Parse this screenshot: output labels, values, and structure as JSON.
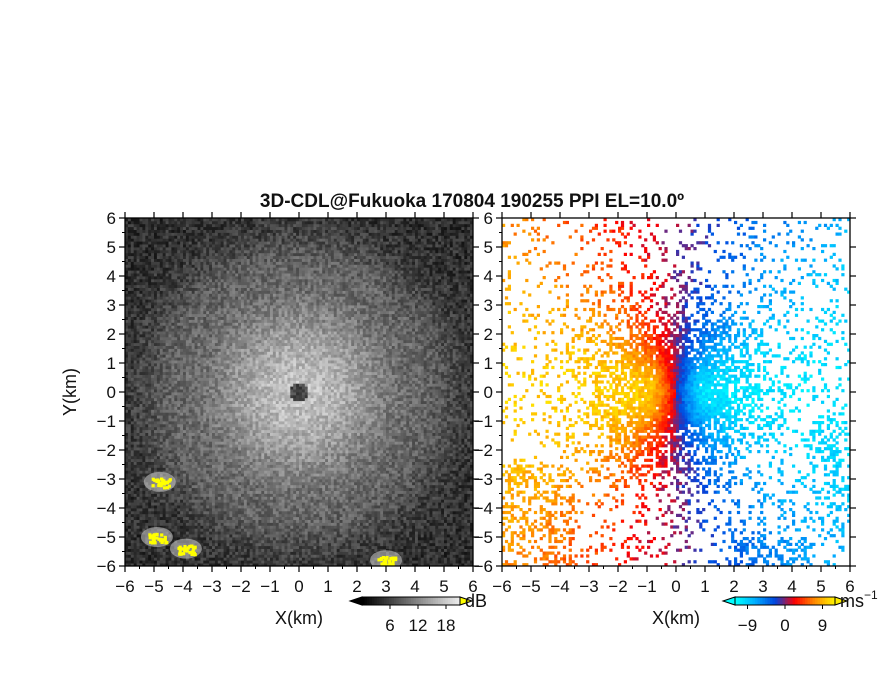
{
  "title": "3D-CDL@Fukuoka 170804 190255 PPI EL=10.0º",
  "chart_data": [
    {
      "type": "heatmap",
      "name": "left-panel",
      "xlabel": "X(km)",
      "ylabel": "Y(km)",
      "xlim": [
        -6,
        6
      ],
      "ylim": [
        -6,
        6
      ],
      "xticks": [
        -6,
        -5,
        -4,
        -3,
        -2,
        -1,
        0,
        1,
        2,
        3,
        4,
        5,
        6
      ],
      "yticks": [
        -6,
        -5,
        -4,
        -3,
        -2,
        -1,
        0,
        1,
        2,
        3,
        4,
        5,
        6
      ],
      "xtick_labels": [
        "−6",
        "−5",
        "−4",
        "−3",
        "−2",
        "−1",
        "0",
        "1",
        "2",
        "3",
        "4",
        "5",
        "6"
      ],
      "ytick_labels": [
        "−6",
        "−5",
        "−4",
        "−3",
        "−2",
        "−1",
        "0",
        "1",
        "2",
        "3",
        "4",
        "5",
        "6"
      ],
      "colorbar": {
        "unit": "dB",
        "ticks": [
          6,
          12,
          18
        ],
        "tick_labels": [
          "6",
          "12",
          "18"
        ],
        "range": [
          0,
          21
        ],
        "colors": [
          "#000000",
          "#ffffff"
        ],
        "over_color": "#ffff00"
      },
      "features": [
        {
          "label": "strong echo",
          "x": -4.8,
          "y": -3.1
        },
        {
          "label": "strong echo",
          "x": -4.9,
          "y": -5.0
        },
        {
          "label": "strong echo",
          "x": -3.9,
          "y": -5.4
        },
        {
          "label": "strong echo",
          "x": 3.0,
          "y": -5.8
        }
      ]
    },
    {
      "type": "heatmap",
      "name": "right-panel",
      "xlabel": "X(km)",
      "ylabel": "",
      "xlim": [
        -6,
        6
      ],
      "ylim": [
        -6,
        6
      ],
      "xticks": [
        -6,
        -5,
        -4,
        -3,
        -2,
        -1,
        0,
        1,
        2,
        3,
        4,
        5,
        6
      ],
      "yticks": [
        -6,
        -5,
        -4,
        -3,
        -2,
        -1,
        0,
        1,
        2,
        3,
        4,
        5,
        6
      ],
      "xtick_labels": [
        "−6",
        "−5",
        "−4",
        "−3",
        "−2",
        "−1",
        "0",
        "1",
        "2",
        "3",
        "4",
        "5",
        "6"
      ],
      "ytick_labels": [
        "−6",
        "−5",
        "−4",
        "−3",
        "−2",
        "−1",
        "0",
        "1",
        "2",
        "3",
        "4",
        "5",
        "6"
      ],
      "colorbar": {
        "unit": "ms",
        "unit_exponent": "−1",
        "ticks": [
          -9,
          0,
          9
        ],
        "tick_labels": [
          "−9",
          "0",
          "9"
        ],
        "range": [
          -12,
          12
        ],
        "colors": [
          "#00ffff",
          "#00aaff",
          "#0044dd",
          "#ff0000",
          "#ff8800",
          "#ffee00"
        ]
      }
    }
  ]
}
